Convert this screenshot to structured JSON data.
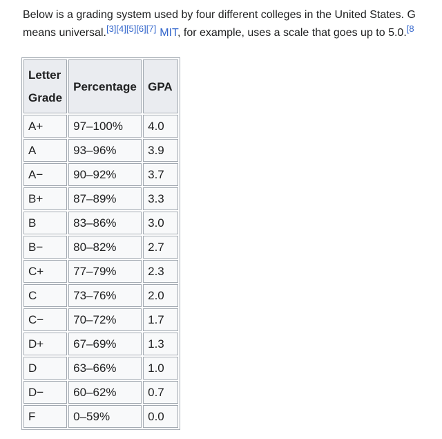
{
  "colors": {
    "page_background": "#ffffff",
    "text": "#202122",
    "link": "#3366cc",
    "table_border": "#a2a9b1",
    "header_background": "#eaecf0",
    "cell_background": "#f8f9fa"
  },
  "paragraph": {
    "line1": "Below is a grading system used by four different colleges in the United States. G",
    "line2_start": "means universal.",
    "citation_refs": "[3][4][5][6][7]",
    "mit_link": "MIT",
    "line2_end": ", for example, uses a scale that goes up to 5.0.",
    "trailing_ref": "[8"
  },
  "grading_table": {
    "headers": {
      "letter_grade": "Letter Grade",
      "percentage": "Percentage",
      "gpa": "GPA"
    },
    "rows": [
      {
        "grade": "A+",
        "percentage": "97–100%",
        "gpa": "4.0"
      },
      {
        "grade": "A",
        "percentage": "93–96%",
        "gpa": "3.9"
      },
      {
        "grade": "A−",
        "percentage": "90–92%",
        "gpa": "3.7"
      },
      {
        "grade": "B+",
        "percentage": "87–89%",
        "gpa": "3.3"
      },
      {
        "grade": "B",
        "percentage": "83–86%",
        "gpa": "3.0"
      },
      {
        "grade": "B−",
        "percentage": "80–82%",
        "gpa": "2.7"
      },
      {
        "grade": "C+",
        "percentage": "77–79%",
        "gpa": "2.3"
      },
      {
        "grade": "C",
        "percentage": "73–76%",
        "gpa": "2.0"
      },
      {
        "grade": "C−",
        "percentage": "70–72%",
        "gpa": "1.7"
      },
      {
        "grade": "D+",
        "percentage": "67–69%",
        "gpa": "1.3"
      },
      {
        "grade": "D",
        "percentage": "63–66%",
        "gpa": "1.0"
      },
      {
        "grade": "D−",
        "percentage": "60–62%",
        "gpa": "0.7"
      },
      {
        "grade": "F",
        "percentage": "0–59%",
        "gpa": "0.0"
      }
    ]
  }
}
